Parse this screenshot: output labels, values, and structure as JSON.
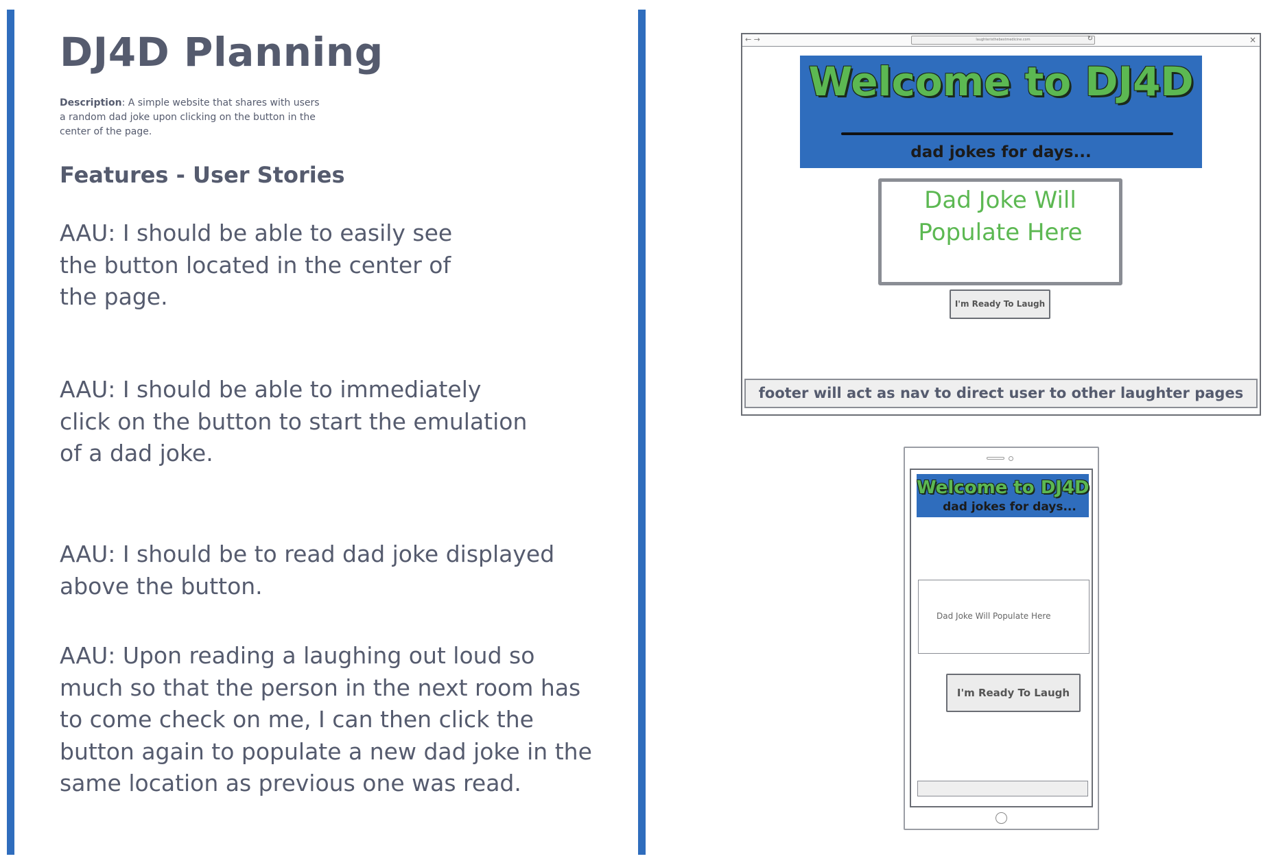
{
  "page": {
    "title": "DJ4D Planning",
    "description_label": "Description",
    "description_text": ": A simple website that shares with users a random dad joke upon clicking on the button in the center of the page.",
    "features_heading": "Features - User Stories",
    "stories": [
      "AAU: I should be able to easily see the button located in the center of the page.",
      "AAU: I should be able to immediately click on the button to start the emulation of a dad joke.",
      "AAU: I should be to read dad joke displayed above the button.",
      "AAU: Upon reading a laughing out loud so much so that the person in the next room has to come check on me, I can then click the button again to populate a new dad joke in the same location as previous one was read."
    ]
  },
  "desktop_wireframe": {
    "url": "laughteristhebestmedicine.com",
    "hero_title": "Welcome to DJ4D",
    "hero_subtitle": "dad jokes for days...",
    "joke_placeholder": "Dad Joke Will Populate Here",
    "button_label": "I'm Ready To Laugh",
    "footer_text": "footer will act as nav to direct user to other laughter pages"
  },
  "mobile_wireframe": {
    "hero_title": "Welcome to DJ4D",
    "hero_subtitle": "dad jokes for days...",
    "joke_placeholder": "Dad Joke Will Populate Here",
    "button_label": "I'm Ready To Laugh"
  },
  "colors": {
    "accent_blue": "#2f6dbd",
    "title_green": "#5cb852",
    "text_gray": "#555b6e"
  }
}
